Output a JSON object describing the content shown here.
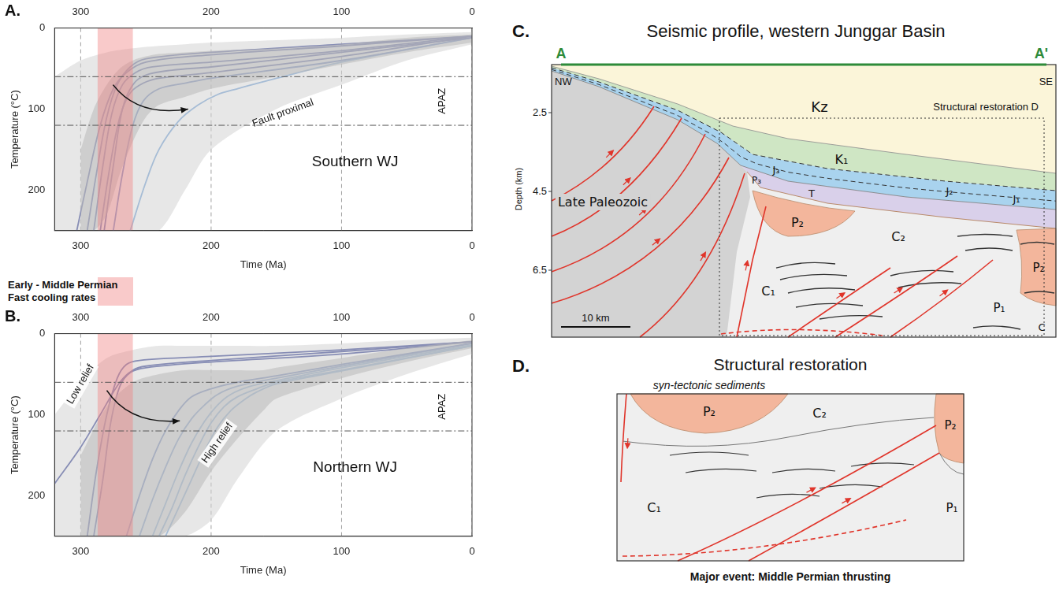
{
  "chart_data": [
    {
      "panel": "A.",
      "type": "line",
      "title": "Southern WJ",
      "x_label": "Time (Ma)",
      "y_label": "Temperature (°C)",
      "xlim": [
        320,
        0
      ],
      "xticks": [
        300,
        200,
        100,
        0
      ],
      "ylim": [
        250,
        0
      ],
      "yticks": [
        0,
        100,
        200
      ],
      "grid": "x",
      "apaz": [
        60,
        120
      ],
      "apaz_label": "APAZ",
      "arrow_labels": [
        "Fault proximal"
      ],
      "shaded_x": [
        287,
        260
      ],
      "shaded_color": "#f08080",
      "bands": [
        {
          "color": "#d4d4d4",
          "x": [
            320,
            300,
            280,
            260,
            240,
            220,
            200,
            150,
            100,
            50,
            0
          ],
          "min": [
            60,
            40,
            30,
            25,
            22,
            20,
            18,
            15,
            12,
            8,
            5
          ],
          "max": [
            250,
            250,
            250,
            250,
            250,
            200,
            150,
            100,
            70,
            40,
            20
          ]
        },
        {
          "color": "#9a9a9a",
          "x": [
            300,
            290,
            280,
            270,
            260,
            250,
            240,
            220,
            200,
            150,
            100,
            50,
            0
          ],
          "min": [
            150,
            100,
            70,
            50,
            40,
            35,
            32,
            30,
            28,
            25,
            20,
            12,
            8
          ],
          "max": [
            250,
            250,
            230,
            180,
            140,
            110,
            95,
            85,
            75,
            60,
            45,
            30,
            18
          ]
        }
      ],
      "series": [
        {
          "color": "#2b3990",
          "x": [
            303,
            295,
            285,
            275,
            265,
            250,
            200,
            100,
            0
          ],
          "values": [
            250,
            190,
            120,
            75,
            55,
            42,
            33,
            22,
            10
          ]
        },
        {
          "color": "#2b3990",
          "x": [
            295,
            288,
            280,
            272,
            262,
            250,
            200,
            100,
            0
          ],
          "values": [
            250,
            180,
            110,
            70,
            48,
            38,
            30,
            20,
            10
          ]
        },
        {
          "color": "#2b3990",
          "x": [
            290,
            283,
            276,
            268,
            258,
            245,
            200,
            100,
            0
          ],
          "values": [
            250,
            170,
            105,
            70,
            55,
            48,
            42,
            28,
            10
          ]
        },
        {
          "color": "#2b3990",
          "x": [
            285,
            278,
            270,
            262,
            252,
            240,
            200,
            100,
            0
          ],
          "values": [
            250,
            175,
            110,
            80,
            68,
            62,
            55,
            35,
            10
          ]
        },
        {
          "color": "#2b3990",
          "x": [
            282,
            275,
            268,
            260,
            250,
            230,
            200,
            100,
            0
          ],
          "values": [
            250,
            170,
            100,
            70,
            58,
            52,
            48,
            30,
            12
          ]
        },
        {
          "color": "#3f5fb5",
          "x": [
            275,
            268,
            260,
            252,
            240,
            220,
            200,
            100,
            0
          ],
          "values": [
            250,
            180,
            120,
            90,
            75,
            68,
            62,
            40,
            12
          ]
        },
        {
          "color": "#6fa0d8",
          "x": [
            262,
            250,
            240,
            225,
            210,
            195,
            180,
            150,
            100,
            0
          ],
          "values": [
            250,
            190,
            150,
            115,
            95,
            82,
            75,
            62,
            42,
            12
          ]
        }
      ]
    },
    {
      "panel": "B.",
      "type": "line",
      "title": "Northern WJ",
      "x_label": "Time (Ma)",
      "y_label": "Temperature (°C)",
      "xlim": [
        320,
        0
      ],
      "xticks": [
        300,
        200,
        100,
        0
      ],
      "ylim": [
        250,
        0
      ],
      "yticks": [
        0,
        100,
        200
      ],
      "grid": "x",
      "apaz": [
        60,
        120
      ],
      "apaz_label": "APAZ",
      "arrow_labels": [
        "Low relief",
        "High relief"
      ],
      "shaded_x": [
        287,
        260
      ],
      "shaded_color": "#f08080",
      "bands": [
        {
          "color": "#d4d4d4",
          "x": [
            320,
            300,
            280,
            260,
            240,
            220,
            200,
            180,
            150,
            100,
            50,
            0
          ],
          "min": [
            100,
            60,
            30,
            20,
            15,
            15,
            15,
            15,
            15,
            12,
            8,
            5
          ],
          "max": [
            250,
            250,
            250,
            250,
            250,
            250,
            230,
            180,
            120,
            80,
            50,
            25
          ]
        },
        {
          "color": "#9a9a9a",
          "x": [
            300,
            280,
            260,
            240,
            220,
            200,
            180,
            160,
            150,
            100,
            50,
            0
          ],
          "min": [
            150,
            90,
            60,
            50,
            45,
            45,
            45,
            45,
            42,
            30,
            18,
            8
          ],
          "max": [
            250,
            250,
            250,
            250,
            220,
            170,
            130,
            95,
            80,
            55,
            35,
            18
          ]
        }
      ],
      "series": [
        {
          "color": "#2b3990",
          "x": [
            320,
            300,
            285,
            270,
            260,
            250,
            200,
            100,
            0
          ],
          "values": [
            185,
            140,
            100,
            60,
            45,
            40,
            33,
            22,
            10
          ]
        },
        {
          "color": "#2b3990",
          "x": [
            295,
            288,
            280,
            272,
            265,
            255,
            200,
            100,
            0
          ],
          "values": [
            250,
            170,
            100,
            55,
            38,
            33,
            28,
            20,
            10
          ]
        },
        {
          "color": "#2b3990",
          "x": [
            290,
            283,
            277,
            270,
            262,
            250,
            200,
            100,
            0
          ],
          "values": [
            250,
            180,
            110,
            65,
            48,
            42,
            35,
            25,
            10
          ]
        },
        {
          "color": "#3f5fb5",
          "x": [
            265,
            255,
            245,
            235,
            225,
            215,
            200,
            180,
            150,
            100,
            0
          ],
          "values": [
            250,
            200,
            155,
            120,
            95,
            78,
            68,
            60,
            52,
            38,
            12
          ]
        },
        {
          "color": "#5b86c9",
          "x": [
            255,
            245,
            235,
            225,
            215,
            205,
            195,
            180,
            150,
            100,
            0
          ],
          "values": [
            250,
            205,
            165,
            130,
            105,
            88,
            75,
            65,
            55,
            40,
            12
          ]
        },
        {
          "color": "#6fa0d8",
          "x": [
            245,
            235,
            225,
            215,
            205,
            195,
            185,
            170,
            150,
            100,
            0
          ],
          "values": [
            250,
            210,
            170,
            135,
            108,
            88,
            75,
            65,
            58,
            42,
            14
          ]
        },
        {
          "color": "#6fa0d8",
          "x": [
            240,
            230,
            220,
            210,
            200,
            190,
            180,
            165,
            150,
            100,
            0
          ],
          "values": [
            250,
            215,
            175,
            140,
            110,
            90,
            78,
            68,
            60,
            45,
            15
          ]
        },
        {
          "color": "#6fa0d8",
          "x": [
            235,
            225,
            215,
            205,
            195,
            185,
            175,
            165,
            150,
            100,
            0
          ],
          "values": [
            250,
            215,
            180,
            145,
            115,
            95,
            82,
            72,
            62,
            46,
            15
          ]
        }
      ]
    }
  ],
  "shaded_label": [
    "Early - Middle Permian",
    "Fast cooling rates"
  ],
  "C": {
    "letter": "C.",
    "title": "Seismic profile, western Junggar Basin",
    "section_start": "A",
    "section_end": "A'",
    "left_end": "NW",
    "right_end": "SE",
    "depth_label": "Depth (km)",
    "depth_ticks": [
      2.5,
      4.5,
      6.5
    ],
    "scale_bar": "10 km",
    "box_label": "Structural restoration D",
    "units": [
      "Kz",
      "K₁",
      "J₃",
      "J₂",
      "J₁",
      "P₃",
      "T",
      "P₂",
      "C₂",
      "C₁",
      "P₂",
      "P₁",
      "C",
      "Late Paleozoic"
    ]
  },
  "D": {
    "letter": "D.",
    "title": "Structural restoration",
    "note": "syn-tectonic sediments",
    "units": [
      "P₂",
      "C₂",
      "P₂",
      "P₁",
      "C₁"
    ],
    "caption": "Major event: Middle Permian thrusting"
  }
}
